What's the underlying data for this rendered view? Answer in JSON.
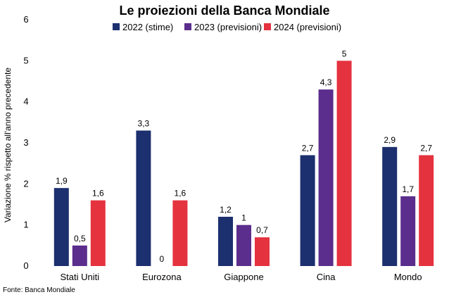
{
  "chart_data": {
    "type": "bar",
    "title": "Le proiezioni della Banca Mondiale",
    "ylabel": "Variazione % rispetto all'anno precedente",
    "xlabel": "",
    "ylim": [
      0,
      6
    ],
    "yticks": [
      "0",
      "1",
      "2",
      "3",
      "4",
      "5",
      "6"
    ],
    "grid": false,
    "legend_position": "top",
    "categories": [
      "Stati Uniti",
      "Eurozona",
      "Giappone",
      "Cina",
      "Mondo"
    ],
    "series": [
      {
        "name": "2022 (stime)",
        "color": "#1c2f6e",
        "values": [
          1.9,
          3.3,
          1.2,
          2.7,
          2.9
        ],
        "labels": [
          "1,9",
          "3,3",
          "1,2",
          "2,7",
          "2,9"
        ]
      },
      {
        "name": "2023 (previsioni)",
        "color": "#5b2d8c",
        "values": [
          0.5,
          0,
          1.0,
          4.3,
          1.7
        ],
        "labels": [
          "0,5",
          "0",
          "1",
          "4,3",
          "1,7"
        ]
      },
      {
        "name": "2024 (previsioni)",
        "color": "#e5323f",
        "values": [
          1.6,
          1.6,
          0.7,
          5.0,
          2.7
        ],
        "labels": [
          "1,6",
          "1,6",
          "0,7",
          "5",
          "2,7"
        ]
      }
    ],
    "source": "Fonte: Banca Mondiale"
  }
}
